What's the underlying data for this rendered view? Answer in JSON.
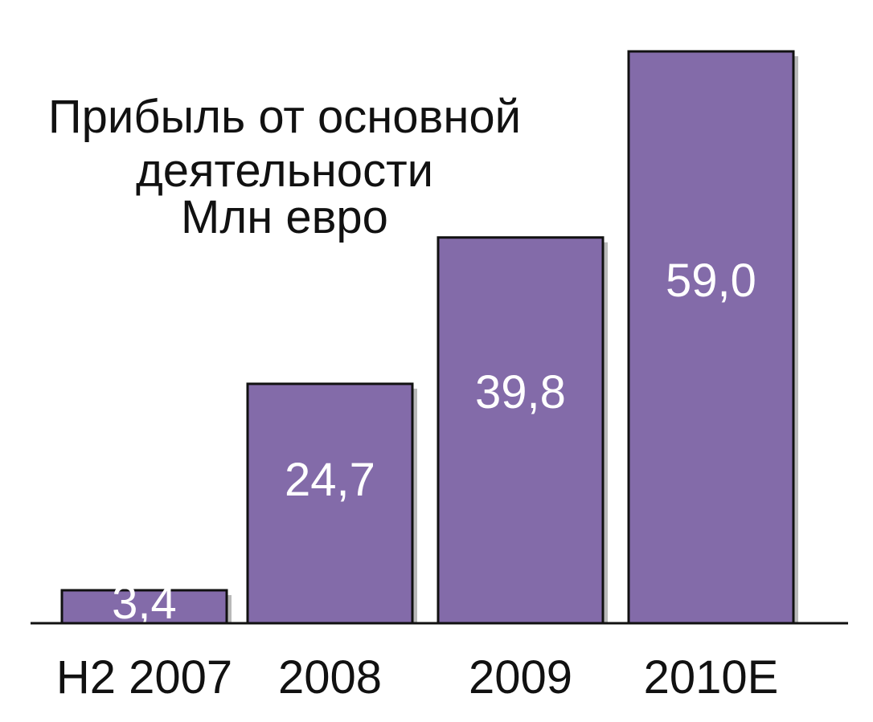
{
  "chart_data": {
    "type": "bar",
    "title_lines": [
      "Прибыль от основной",
      "деятельности",
      "Млн евро"
    ],
    "categories": [
      "H2 2007",
      "2008",
      "2009",
      "2010E"
    ],
    "values": [
      3.4,
      24.7,
      39.8,
      59.0
    ],
    "value_labels": [
      "3,4",
      "24,7",
      "39,8",
      "59,0"
    ],
    "bar_color": "#836BA9",
    "legend": "none",
    "grid": false
  }
}
